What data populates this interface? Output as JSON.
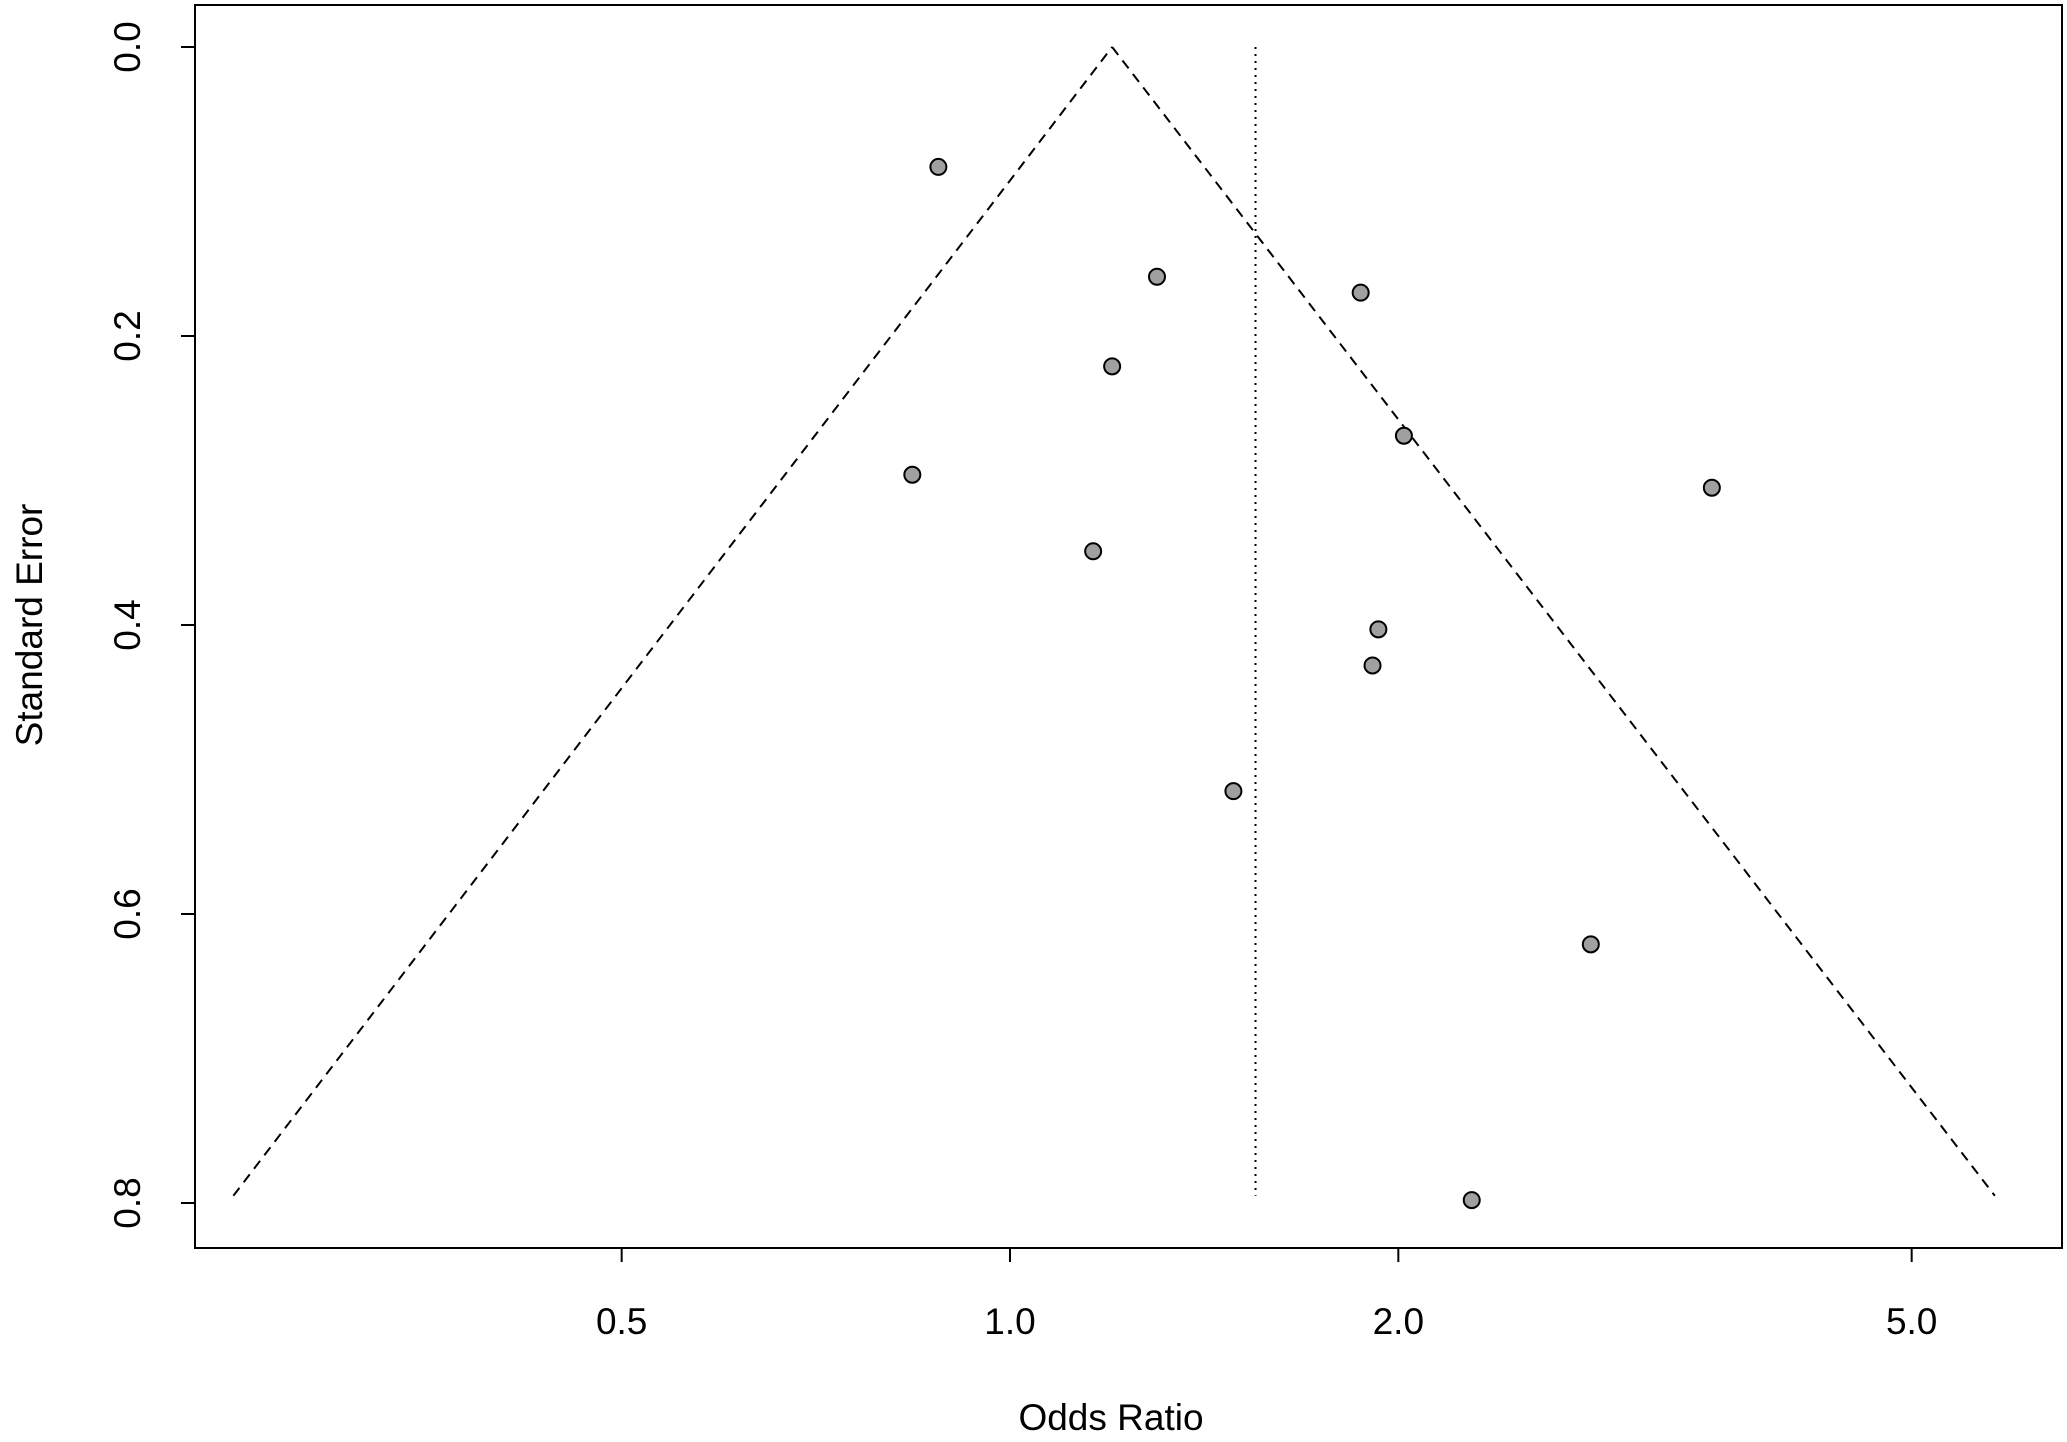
{
  "chart_data": {
    "type": "scatter",
    "subtype": "funnel-plot",
    "title": "",
    "xlabel": "Odds Ratio",
    "ylabel": "Standard Error",
    "x_scale": "log",
    "xlim": [
      0.27,
      6.7
    ],
    "ylim": [
      0.8,
      0.0
    ],
    "y_reversed": true,
    "x_ticks": [
      0.5,
      1.0,
      2.0,
      5.0
    ],
    "x_tick_labels": [
      "0.5",
      "1.0",
      "2.0",
      "5.0"
    ],
    "y_ticks": [
      0.0,
      0.2,
      0.4,
      0.6,
      0.8
    ],
    "y_tick_labels": [
      "0.0",
      "0.2",
      "0.4",
      "0.6",
      "0.8"
    ],
    "grid": false,
    "legend": "none",
    "funnel": {
      "apex_or": 1.2,
      "bottom_se": 0.795,
      "left_or_at_bottom": 0.25,
      "right_or_at_bottom": 5.8,
      "line_style": "dashed"
    },
    "reference_line": {
      "or": 1.55,
      "se_range": [
        0.0,
        0.795
      ],
      "line_style": "dotted"
    },
    "point_fill": "#a0a0a0",
    "point_stroke": "#000000",
    "points": [
      {
        "or": 0.88,
        "se": 0.083
      },
      {
        "or": 1.3,
        "se": 0.159
      },
      {
        "or": 1.87,
        "se": 0.17
      },
      {
        "or": 1.2,
        "se": 0.221
      },
      {
        "or": 2.02,
        "se": 0.269
      },
      {
        "or": 0.84,
        "se": 0.296
      },
      {
        "or": 3.5,
        "se": 0.305
      },
      {
        "or": 1.16,
        "se": 0.349
      },
      {
        "or": 1.93,
        "se": 0.403
      },
      {
        "or": 1.91,
        "se": 0.428
      },
      {
        "or": 1.49,
        "se": 0.515
      },
      {
        "or": 2.82,
        "se": 0.621
      },
      {
        "or": 2.28,
        "se": 0.798
      }
    ]
  }
}
